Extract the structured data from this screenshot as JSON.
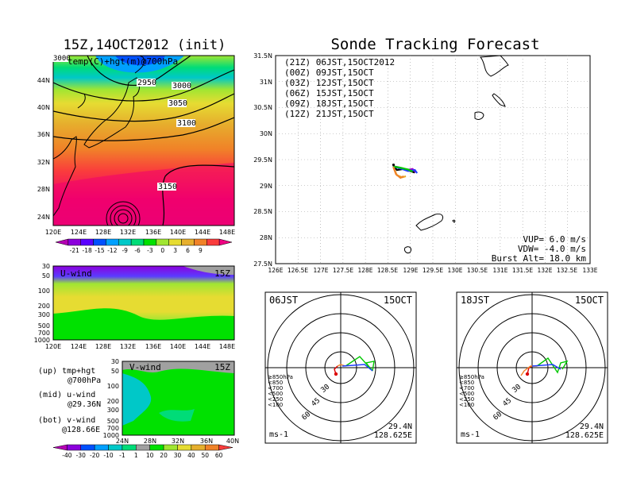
{
  "main_title": "Sonde Tracking Forecast",
  "map_panel": {
    "title": "15Z,14OCT2012 (init)",
    "label": "temp(C)+hgt(m)@700hPa",
    "contours": [
      "3000",
      "2950",
      "3000",
      "3050",
      "3100",
      "3150"
    ],
    "xticks": [
      "120E",
      "124E",
      "128E",
      "132E",
      "136E",
      "140E",
      "144E",
      "148E"
    ],
    "yticks": [
      "44N",
      "40N",
      "36N",
      "32N",
      "28N",
      "24N"
    ]
  },
  "temp_colorbar": {
    "labels": [
      "-21",
      "-18",
      "-15",
      "-12",
      "-9",
      "-6",
      "-3",
      "0",
      "3",
      "6",
      "9"
    ],
    "colors": [
      "#b400b4",
      "#8c00dc",
      "#5a00ff",
      "#0050ff",
      "#00a0ff",
      "#00c8c8",
      "#00dc78",
      "#00e100",
      "#a0e632",
      "#e6dc32",
      "#e6af2d",
      "#f08228",
      "#fa3c3c",
      "#f00082"
    ]
  },
  "u_panel": {
    "label": "U-wind",
    "time": "15Z",
    "yticks": [
      "30",
      "50",
      "100",
      "200",
      "300",
      "500",
      "700",
      "1000"
    ],
    "xticks": [
      "120E",
      "124E",
      "128E",
      "132E",
      "136E",
      "140E",
      "144E",
      "148E"
    ]
  },
  "v_panel": {
    "label": "V-wind",
    "time": "15Z",
    "yticks": [
      "30",
      "50",
      "100",
      "200",
      "300",
      "500",
      "700",
      "1000"
    ],
    "xticks": [
      "24N",
      "28N",
      "32N",
      "36N",
      "40N"
    ]
  },
  "wind_colorbar": {
    "labels": [
      "-40",
      "-30",
      "-20",
      "-10",
      "-1",
      "1",
      "10",
      "20",
      "30",
      "40",
      "50",
      "60"
    ],
    "colors": [
      "#b400b4",
      "#8c00dc",
      "#0050ff",
      "#00a0ff",
      "#00c8c8",
      "#00dc78",
      "#a0a0a0",
      "#00e100",
      "#a0e632",
      "#e6dc32",
      "#e6af2d",
      "#f08228",
      "#fa3c3c"
    ]
  },
  "legend_notes": [
    {
      "head": "(up) tmp+hgt",
      "sub": "@700hPa"
    },
    {
      "head": "(mid) u-wind",
      "sub": "@29.36N"
    },
    {
      "head": "(bot) v-wind",
      "sub": "@128.66E"
    }
  ],
  "track_panel": {
    "legend": [
      {
        "text": "(21Z) 06JST,15OCT2012",
        "color": "#000000"
      },
      {
        "text": "(00Z) 09JST,15OCT",
        "color": "#a000c8"
      },
      {
        "text": "(03Z) 12JST,15OCT",
        "color": "#1e3cff"
      },
      {
        "text": "(06Z) 15JST,15OCT",
        "color": "#00c800"
      },
      {
        "text": "(09Z) 18JST,15OCT",
        "color": "#e6af2d"
      },
      {
        "text": "(12Z) 21JST,15OCT",
        "color": "#f08228"
      }
    ],
    "yticks": [
      "31.5N",
      "31N",
      "30.5N",
      "30N",
      "29.5N",
      "29N",
      "28.5N",
      "28N",
      "27.5N"
    ],
    "xticks": [
      "126E",
      "126.5E",
      "127E",
      "127.5E",
      "128E",
      "128.5E",
      "129E",
      "129.5E",
      "130E",
      "130.5E",
      "131E",
      "131.5E",
      "132E",
      "132.5E",
      "133E"
    ],
    "info": [
      "VUP= 6.0 m/s",
      "VDW= -4.0 m/s",
      "Burst Alt= 18.0 km"
    ]
  },
  "hodographs": [
    {
      "time": "06JST",
      "date": "15OCT",
      "unit": "ms-1",
      "lat": "29.4N",
      "lon": "128.625E",
      "ring_labels": [
        "30",
        "45",
        "60"
      ],
      "levels": [
        "≥850hPa",
        "<850",
        "<700",
        "<500",
        "<250",
        "<100"
      ],
      "level_colors": [
        "#dc0000",
        "#f08228",
        "#e6dc32",
        "#00c800",
        "#00a0ff",
        "#1e3cff"
      ]
    },
    {
      "time": "18JST",
      "date": "15OCT",
      "unit": "ms-1",
      "lat": "29.4N",
      "lon": "128.625E",
      "ring_labels": [
        "30",
        "45",
        "60"
      ],
      "levels": [
        "≥850hPa",
        "<850",
        "<700",
        "<500",
        "<250",
        "<100"
      ],
      "level_colors": [
        "#dc0000",
        "#f08228",
        "#e6dc32",
        "#00c800",
        "#00a0ff",
        "#1e3cff"
      ]
    }
  ],
  "chart_data": [
    {
      "type": "heatmap",
      "title": "15Z,14OCT2012 (init)",
      "variable": "temp(C)+hgt(m)@700hPa",
      "xlim": [
        "120E",
        "149E"
      ],
      "ylim": [
        "22N",
        "47N"
      ],
      "contour_levels": [
        2950,
        3000,
        3050,
        3100,
        3150
      ],
      "colorbar": [
        -21,
        -18,
        -15,
        -12,
        -9,
        -6,
        -3,
        0,
        3,
        6,
        9
      ]
    },
    {
      "type": "heatmap",
      "variable": "U-wind",
      "time": "15Z",
      "at": "29.36N",
      "y_pressure_hPa": [
        30,
        50,
        100,
        200,
        300,
        500,
        700,
        1000
      ]
    },
    {
      "type": "heatmap",
      "variable": "V-wind",
      "time": "15Z",
      "at": "128.66E",
      "xlim": [
        "24N",
        "40N"
      ],
      "y_pressure_hPa": [
        30,
        50,
        100,
        200,
        300,
        500,
        700,
        1000
      ],
      "colorbar": [
        -40,
        -30,
        -20,
        -10,
        -1,
        1,
        10,
        20,
        30,
        40,
        50,
        60
      ]
    },
    {
      "type": "line",
      "title": "Sonde Tracking Forecast",
      "xlim": [
        126,
        133
      ],
      "ylim": [
        27.5,
        31.5
      ],
      "launch": {
        "lon": 128.625,
        "lat": 29.4
      },
      "series": [
        {
          "name": "(21Z) 06JST,15OCT2012",
          "x": [
            128.62,
            128.7,
            128.85,
            129.0,
            129.1
          ],
          "y": [
            29.38,
            29.3,
            29.32,
            29.28,
            29.25
          ]
        },
        {
          "name": "(00Z) 09JST,15OCT",
          "x": [
            128.62,
            128.75,
            128.9,
            129.05,
            129.12
          ],
          "y": [
            29.37,
            29.35,
            29.3,
            29.32,
            29.26
          ]
        },
        {
          "name": "(03Z) 12JST,15OCT",
          "x": [
            128.62,
            128.78,
            128.95,
            129.1,
            129.15
          ],
          "y": [
            29.37,
            29.33,
            29.28,
            29.3,
            29.24
          ]
        },
        {
          "name": "(06Z) 15JST,15OCT",
          "x": [
            128.62,
            128.8,
            128.95,
            129.05
          ],
          "y": [
            29.37,
            29.34,
            29.31,
            29.27
          ]
        },
        {
          "name": "(09Z) 18JST,15OCT",
          "x": [
            128.62,
            128.7,
            128.82,
            128.9
          ],
          "y": [
            29.36,
            29.2,
            29.16,
            29.18
          ]
        },
        {
          "name": "(12Z) 21JST,15OCT",
          "x": [
            128.62,
            128.68,
            128.78,
            128.85
          ],
          "y": [
            29.36,
            29.22,
            29.15,
            29.18
          ]
        }
      ],
      "annotations": [
        "VUP= 6.0 m/s",
        "VDW= -4.0 m/s",
        "Burst Alt= 18.0 km"
      ]
    }
  ]
}
